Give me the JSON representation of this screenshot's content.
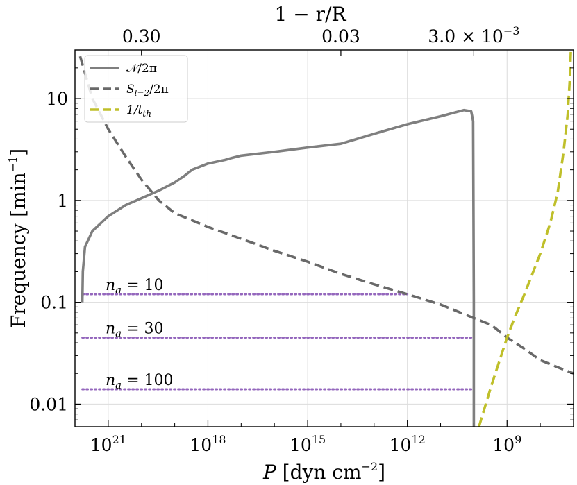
{
  "chart_data": {
    "type": "line",
    "x_scale": "log",
    "x_reversed": true,
    "y_scale": "log",
    "xlabel": "P [dyn cm^-2]",
    "xlabel_parts": {
      "var": "P",
      "open": "[",
      "unit1": "dyn",
      "unit2": "cm",
      "exp": "−2",
      "close": "]"
    },
    "ylabel": "Frequency [min^-1]",
    "ylabel_parts": {
      "text": "Frequency [min",
      "exp": "−1",
      "close": "]"
    },
    "top_xlabel": "1 − r/R",
    "xlim": [
      1e+22,
      10000000.0
    ],
    "ylim": [
      0.006,
      30
    ],
    "grid": true,
    "x_ticks": [
      {
        "value": 1e+21,
        "base": "10",
        "exp": "21"
      },
      {
        "value": 1e+18,
        "base": "10",
        "exp": "18"
      },
      {
        "value": 1000000000000000.0,
        "base": "10",
        "exp": "15"
      },
      {
        "value": 1000000000000.0,
        "base": "10",
        "exp": "12"
      },
      {
        "value": 1000000000.0,
        "base": "10",
        "exp": "9"
      }
    ],
    "y_ticks": [
      {
        "value": 0.01,
        "label": "0.01"
      },
      {
        "value": 0.1,
        "label": "0.1"
      },
      {
        "value": 1,
        "label": "1"
      },
      {
        "value": 10,
        "label": "10"
      }
    ],
    "top_ticks": [
      {
        "p": 1e+20,
        "label": "0.30"
      },
      {
        "p": 100000000000000.0,
        "label": "0.03"
      },
      {
        "p": 10000000000.0,
        "label": "3.0 × 10",
        "exp": "−3"
      }
    ],
    "legend": {
      "placement": "upper-left",
      "entries": [
        {
          "label": "𝒩/2π",
          "series": 0
        },
        {
          "label": "S_{l=2}/2π",
          "label_main": "S",
          "label_sub": "l=2",
          "label_tail": "/2π",
          "series": 1
        },
        {
          "label": "1/t_th",
          "label_main": "1/t",
          "label_sub": "th",
          "series": 2
        }
      ]
    },
    "series": [
      {
        "name": "𝒩/2π",
        "color": "#7f7f7f",
        "style": "solid",
        "points": [
          [
            6e+21,
            0.1
          ],
          [
            5.8e+21,
            0.2
          ],
          [
            5e+21,
            0.35
          ],
          [
            3e+21,
            0.5
          ],
          [
            1e+21,
            0.7
          ],
          [
            3e+20,
            0.9
          ],
          [
            1e+20,
            1.05
          ],
          [
            3e+19,
            1.25
          ],
          [
            1e+19,
            1.5
          ],
          [
            5e+18,
            1.75
          ],
          [
            3e+18,
            2.0
          ],
          [
            1e+18,
            2.3
          ],
          [
            3e+17,
            2.5
          ],
          [
            2e+17,
            2.6
          ],
          [
            1e+17,
            2.75
          ],
          [
            1e+16,
            3.0
          ],
          [
            1000000000000000.0,
            3.3
          ],
          [
            100000000000000.0,
            3.6
          ],
          [
            10000000000000.0,
            4.5
          ],
          [
            1000000000000.0,
            5.6
          ],
          [
            100000000000.0,
            6.7
          ],
          [
            20000000000.0,
            7.7
          ],
          [
            12000000000.0,
            7.5
          ],
          [
            10500000000.0,
            6.0
          ],
          [
            10000000000.0,
            0.1
          ],
          [
            10000000000.0,
            0.005
          ]
        ]
      },
      {
        "name": "S_{l=2}/2π",
        "color": "#696969",
        "style": "dashed",
        "points": [
          [
            7e+21,
            26
          ],
          [
            3e+21,
            10
          ],
          [
            1e+21,
            5
          ],
          [
            3e+20,
            2.7
          ],
          [
            1e+20,
            1.6
          ],
          [
            3e+19,
            1.0
          ],
          [
            1e+19,
            0.75
          ],
          [
            1e+18,
            0.55
          ],
          [
            1e+17,
            0.42
          ],
          [
            1e+16,
            0.32
          ],
          [
            1000000000000000.0,
            0.25
          ],
          [
            100000000000000.0,
            0.19
          ],
          [
            10000000000000.0,
            0.15
          ],
          [
            1000000000000.0,
            0.12
          ],
          [
            100000000000.0,
            0.095
          ],
          [
            10000000000.0,
            0.07
          ],
          [
            3000000000.0,
            0.06
          ],
          [
            1000000000.0,
            0.045
          ],
          [
            300000000.0,
            0.035
          ],
          [
            100000000.0,
            0.027
          ],
          [
            30000000.0,
            0.023
          ],
          [
            10000000.0,
            0.02
          ]
        ]
      },
      {
        "name": "1/t_th",
        "color": "#bfbf2a",
        "style": "dashed",
        "points": [
          [
            7000000000.0,
            0.006
          ],
          [
            3000000000.0,
            0.015
          ],
          [
            1500000000.0,
            0.03
          ],
          [
            1000000000.0,
            0.045
          ],
          [
            600000000.0,
            0.07
          ],
          [
            300000000.0,
            0.12
          ],
          [
            100000000.0,
            0.3
          ],
          [
            50000000.0,
            0.6
          ],
          [
            30000000.0,
            1.2
          ],
          [
            20000000.0,
            3.0
          ],
          [
            15000000.0,
            7.0
          ],
          [
            13000000.0,
            15
          ],
          [
            12000000.0,
            30
          ]
        ]
      }
    ],
    "hlines": [
      {
        "y": 0.12,
        "x_from": 6e+21,
        "x_to": 1000000000000.0,
        "color": "#9467bd",
        "style": "dotted",
        "label_var": "n",
        "label_sub": "a",
        "label_rest": " = 10",
        "label": "n_a = 10"
      },
      {
        "y": 0.045,
        "x_from": 6e+21,
        "x_to": 10000000000.0,
        "color": "#9467bd",
        "style": "dotted",
        "label_var": "n",
        "label_sub": "a",
        "label_rest": " = 30",
        "label": "n_a = 30"
      },
      {
        "y": 0.014,
        "x_from": 6e+21,
        "x_to": 10000000000.0,
        "color": "#9467bd",
        "style": "dotted",
        "label_var": "n",
        "label_sub": "a",
        "label_rest": " = 100",
        "label": "n_a = 100"
      }
    ]
  }
}
